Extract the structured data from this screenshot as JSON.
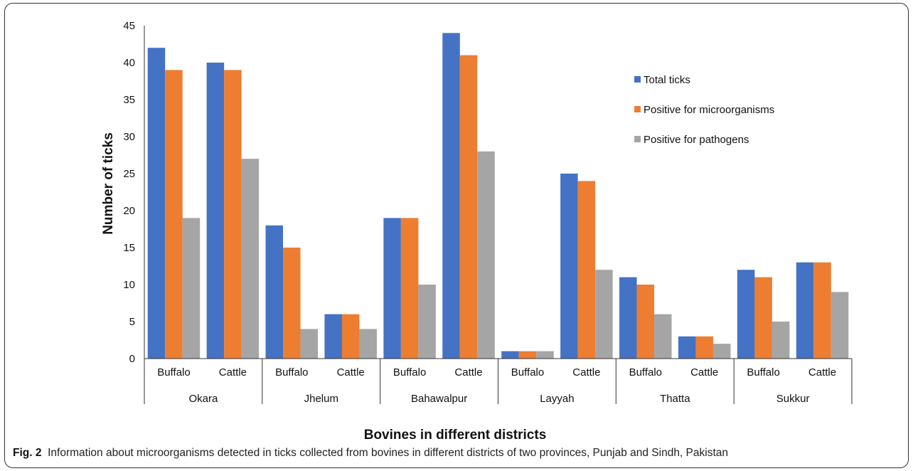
{
  "chart_data": {
    "type": "bar",
    "groups": [
      {
        "district": "Okara",
        "categories": [
          "Buffalo",
          "Cattle"
        ]
      },
      {
        "district": "Jhelum",
        "categories": [
          "Buffalo",
          "Cattle"
        ]
      },
      {
        "district": "Bahawalpur",
        "categories": [
          "Buffalo",
          "Cattle"
        ]
      },
      {
        "district": "Layyah",
        "categories": [
          "Buffalo",
          "Cattle"
        ]
      },
      {
        "district": "Thatta",
        "categories": [
          "Buffalo",
          "Cattle"
        ]
      },
      {
        "district": "Sukkur",
        "categories": [
          "Buffalo",
          "Cattle"
        ]
      }
    ],
    "series": [
      {
        "name": "Total ticks",
        "color": "#4472C4",
        "values": [
          42,
          40,
          18,
          6,
          19,
          44,
          1,
          25,
          11,
          3,
          12,
          13
        ]
      },
      {
        "name": "Positive for microorganisms",
        "color": "#ED7D31",
        "values": [
          39,
          39,
          15,
          6,
          19,
          41,
          1,
          24,
          10,
          3,
          11,
          13
        ]
      },
      {
        "name": "Positive for pathogens",
        "color": "#A5A5A5",
        "values": [
          19,
          27,
          4,
          4,
          10,
          28,
          1,
          12,
          6,
          2,
          5,
          9
        ]
      }
    ],
    "xlabel": "Bovines in different districts",
    "ylabel": "Number of ticks",
    "ylim": [
      0,
      45
    ],
    "yticks": [
      0,
      5,
      10,
      15,
      20,
      25,
      30,
      35,
      40,
      45
    ],
    "grid": false,
    "legend_position": "top-right"
  },
  "caption": {
    "label": "Fig. 2",
    "text": "Information about microorganisms detected in ticks collected from bovines in different districts of two provinces, Punjab and Sindh, Pakistan"
  }
}
